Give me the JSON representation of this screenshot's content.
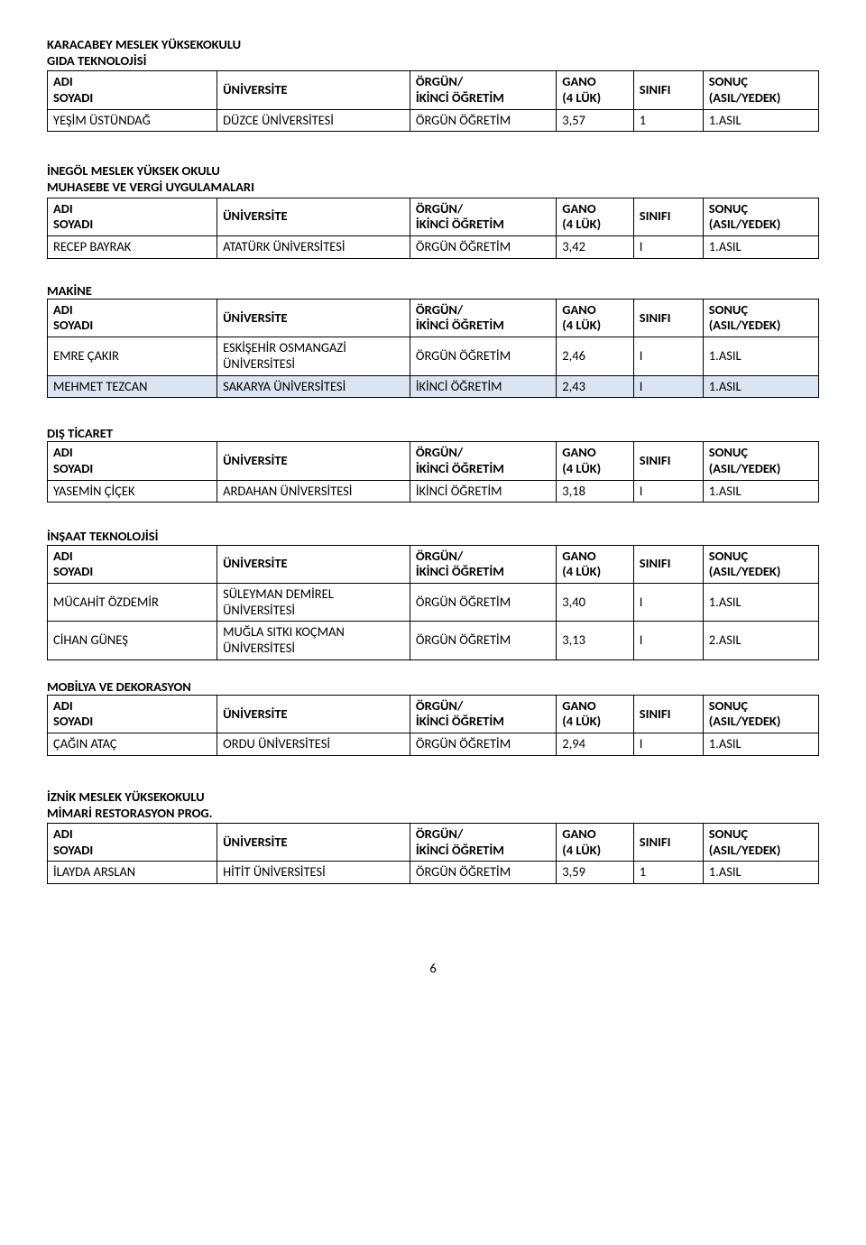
{
  "columns": {
    "adi_soyadi": "ADI\nSOYADI",
    "universite": "ÜNİVERSİTE",
    "orgun_ikinci": "ÖRGÜN/\nİKİNCİ ÖĞRETİM",
    "gano": "GANO\n(4 LÜK)",
    "sinifi": "SINIFI",
    "sonuc": "SONUÇ\n(ASIL/YEDEK)"
  },
  "col_widths": [
    "22%",
    "25%",
    "19%",
    "10%",
    "9%",
    "15%"
  ],
  "sections": [
    {
      "headings": [
        "KARACABEY MESLEK YÜKSEKOKULU",
        "GIDA TEKNOLOJİSİ"
      ],
      "rows": [
        {
          "name": "YEŞİM ÜSTÜNDAĞ",
          "uni": "DÜZCE ÜNİVERSİTESİ",
          "mode": "ÖRGÜN ÖĞRETİM",
          "gano": "3,57",
          "sinif": "1",
          "sonuc": "1.ASIL"
        }
      ]
    },
    {
      "headings": [
        "İNEGÖL MESLEK YÜKSEK OKULU",
        "MUHASEBE VE VERGİ UYGULAMALARI"
      ],
      "rows": [
        {
          "name": "RECEP BAYRAK",
          "uni": "ATATÜRK ÜNİVERSİTESİ",
          "mode": "ÖRGÜN ÖĞRETİM",
          "gano": "3,42",
          "sinif": "I",
          "sonuc": "1.ASIL"
        }
      ]
    },
    {
      "headings": [
        "MAKİNE"
      ],
      "rows": [
        {
          "name": "EMRE ÇAKIR",
          "uni": "ESKİŞEHİR OSMANGAZİ ÜNİVERSİTESİ",
          "mode": "ÖRGÜN ÖĞRETİM",
          "gano": "2,46",
          "sinif": "I",
          "sonuc": "1.ASIL"
        },
        {
          "name": "MEHMET TEZCAN",
          "uni": "SAKARYA ÜNİVERSİTESİ",
          "mode": "İKİNCİ ÖĞRETİM",
          "gano": "2,43",
          "sinif": "I",
          "sonuc": "1.ASIL",
          "highlight": true
        }
      ]
    },
    {
      "headings": [
        "DIŞ TİCARET"
      ],
      "rows": [
        {
          "name": "YASEMİN ÇİÇEK",
          "uni": "ARDAHAN ÜNİVERSİTESİ",
          "mode": "İKİNCİ ÖĞRETİM",
          "gano": "3,18",
          "sinif": "I",
          "sonuc": "1.ASIL"
        }
      ]
    },
    {
      "headings": [
        "İNŞAAT TEKNOLOJİSİ"
      ],
      "rows": [
        {
          "name": "MÜCAHİT ÖZDEMİR",
          "uni": "SÜLEYMAN DEMİREL ÜNİVERSİTESİ",
          "mode": "ÖRGÜN ÖĞRETİM",
          "gano": "3,40",
          "sinif": "I",
          "sonuc": "1.ASIL"
        },
        {
          "name": "CİHAN GÜNEŞ",
          "uni": "MUĞLA SITKI KOÇMAN ÜNİVERSİTESİ",
          "mode": "ÖRGÜN ÖĞRETİM",
          "gano": "3,13",
          "sinif": "I",
          "sonuc": "2.ASIL"
        }
      ]
    },
    {
      "headings": [
        "MOBİLYA VE DEKORASYON"
      ],
      "rows": [
        {
          "name": "ÇAĞIN ATAÇ",
          "uni": "ORDU ÜNİVERSİTESİ",
          "mode": "ÖRGÜN ÖĞRETİM",
          "gano": "2,94",
          "sinif": "I",
          "sonuc": "1.ASIL"
        }
      ]
    },
    {
      "headings": [
        "İZNİK MESLEK YÜKSEKOKULU",
        "MİMARİ RESTORASYON PROG."
      ],
      "rows": [
        {
          "name": "İLAYDA ARSLAN",
          "uni": "HİTİT ÜNİVERSİTESİ",
          "mode": "ÖRGÜN ÖĞRETİM",
          "gano": "3,59",
          "sinif": "1",
          "sonuc": "1.ASIL"
        }
      ]
    }
  ],
  "page_number": "6",
  "colors": {
    "highlight_bg": "#dbe5f1",
    "border": "#000000",
    "text": "#000000",
    "bg": "#ffffff"
  }
}
